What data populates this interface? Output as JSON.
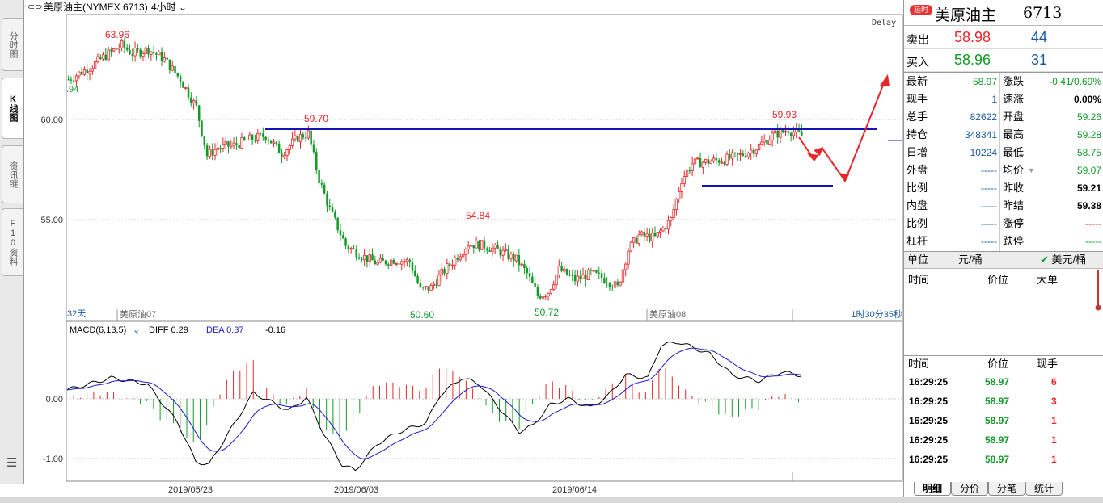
{
  "left_tabs": [
    {
      "label": "分时图",
      "active": false
    },
    {
      "label": "K线图",
      "active": true
    },
    {
      "label": "资讯链",
      "active": false
    },
    {
      "label": "F10资料",
      "active": false
    }
  ],
  "header": {
    "icon": "chart-link-icon",
    "title": "美原油主(NYMEX 6713)",
    "period": "4小时",
    "delay_label": "Delay"
  },
  "kline_axis": {
    "y_labels": [
      "60.00",
      "55.00"
    ],
    "left_edge_label": ".94",
    "days_label": "32天",
    "contract_labels": [
      "美原油07",
      "美原油08"
    ],
    "countdown": "1时30分35秒",
    "annotations": [
      "63.96",
      "59.70",
      "54.84",
      "50.60",
      "50.72",
      "59.93"
    ]
  },
  "macd": {
    "name": "MACD(6,13,5)",
    "diff_label": "DIFF 0.29",
    "dea_label": "DEA 0.37",
    "macd_value": "-0.16",
    "y_labels": [
      "0.00",
      "-1.00"
    ]
  },
  "x_dates": [
    "2019/05/23",
    "2019/06/03",
    "2019/06/14"
  ],
  "colors": {
    "up": "#e8272b",
    "down": "#139a29",
    "resistance": "#1414b4",
    "arrow": "#e8272b",
    "label_up": "#e8272b",
    "label_down": "#139a29"
  },
  "quote": {
    "delay_badge": "延时",
    "name": "美原油主",
    "code": "6713",
    "ask": {
      "label": "卖出",
      "price": "58.98",
      "volume": "44"
    },
    "bid": {
      "label": "买入",
      "price": "58.96",
      "volume": "31"
    },
    "stats_left": [
      {
        "k": "最新",
        "v": "58.97"
      },
      {
        "k": "现手",
        "v": "1"
      },
      {
        "k": "总手",
        "v": "82622"
      },
      {
        "k": "持仓",
        "v": "348341"
      },
      {
        "k": "日增",
        "v": "10224"
      },
      {
        "k": "外盘",
        "v": "-----"
      },
      {
        "k": "比例",
        "v": "-----"
      },
      {
        "k": "内盘",
        "v": "-----"
      },
      {
        "k": "比例",
        "v": "-----"
      },
      {
        "k": "杠杆",
        "v": "-----"
      }
    ],
    "stats_right": [
      {
        "k": "涨跌",
        "v": "-0.41/0.69%"
      },
      {
        "k": "速涨",
        "v": "0.00%"
      },
      {
        "k": "开盘",
        "v": "59.26"
      },
      {
        "k": "最高",
        "v": "59.28"
      },
      {
        "k": "最低",
        "v": "58.75"
      },
      {
        "k": "均价",
        "v": "59.07"
      },
      {
        "k": "昨收",
        "v": "59.21"
      },
      {
        "k": "昨结",
        "v": "59.38"
      },
      {
        "k": "涨停",
        "v": "-----"
      },
      {
        "k": "跌停",
        "v": "-----"
      }
    ],
    "unit_label": "单位",
    "unit_cny": "元/桶",
    "unit_usd": "美元/桶",
    "big_order_header": {
      "time": "时间",
      "price": "价位",
      "big": "大单"
    },
    "tick_header": {
      "time": "时间",
      "price": "价位",
      "hand": "现手"
    },
    "ticks": [
      {
        "time": "16:29:25",
        "price": "58.97",
        "hand": "6"
      },
      {
        "time": "16:29:25",
        "price": "58.97",
        "hand": "3"
      },
      {
        "time": "16:29:25",
        "price": "58.97",
        "hand": "1"
      },
      {
        "time": "16:29:25",
        "price": "58.97",
        "hand": "1"
      },
      {
        "time": "16:29:25",
        "price": "58.97",
        "hand": "1"
      }
    ],
    "bottom_tabs": [
      "明细",
      "分价",
      "分笔",
      "统计"
    ]
  }
}
